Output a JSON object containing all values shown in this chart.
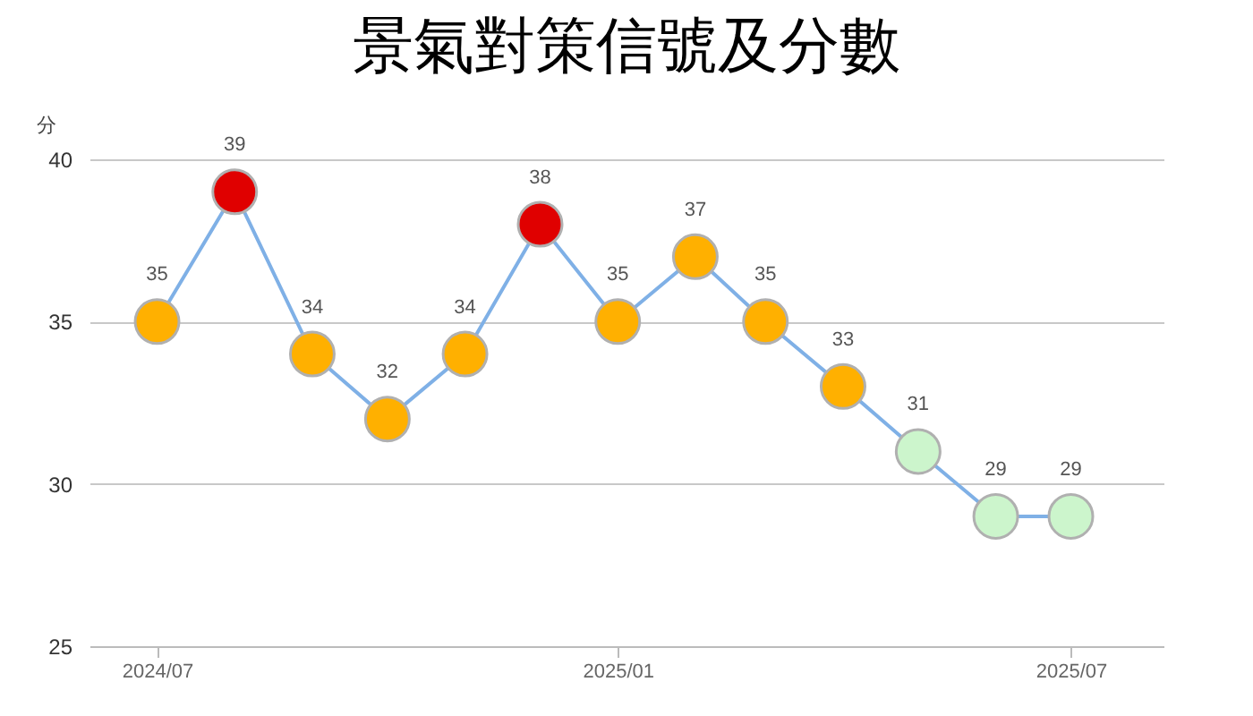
{
  "chart_data": {
    "type": "line",
    "title": "景氣對策信號及分數",
    "ylabel": "分",
    "x": [
      "2024-07",
      "2024-08",
      "2024-09",
      "2024-10",
      "2024-11",
      "2024-12",
      "2025-01",
      "2025-02",
      "2025-03",
      "2025-04",
      "2025-05",
      "2025-06",
      "2025-07"
    ],
    "series": [
      {
        "color": "#7fb0e6",
        "values": [
          35,
          39,
          34,
          32,
          34,
          38,
          35,
          37,
          35,
          33,
          31,
          29,
          29
        ],
        "colors": [
          "#ffb000",
          "#e00000",
          "#ffb000",
          "#ffb000",
          "#ffb000",
          "#e00000",
          "#ffb000",
          "#ffb000",
          "#ffb000",
          "#ffb000",
          "#ccf5cc",
          "#ccf5cc",
          "#ccf5cc"
        ]
      }
    ],
    "xlim": [
      "2024-06-04",
      "2025-08-07"
    ],
    "xticks": [
      {
        "value": "2024-07",
        "label": "2024/07"
      },
      {
        "value": "2025-01",
        "label": "2025/01"
      },
      {
        "value": "2025-07",
        "label": "2025/07"
      }
    ],
    "ylim": [
      25,
      40
    ],
    "yticks": [
      25,
      30,
      35,
      40
    ],
    "grid": "y",
    "marker": "circle",
    "line_style": "solid",
    "data_labels": true
  }
}
